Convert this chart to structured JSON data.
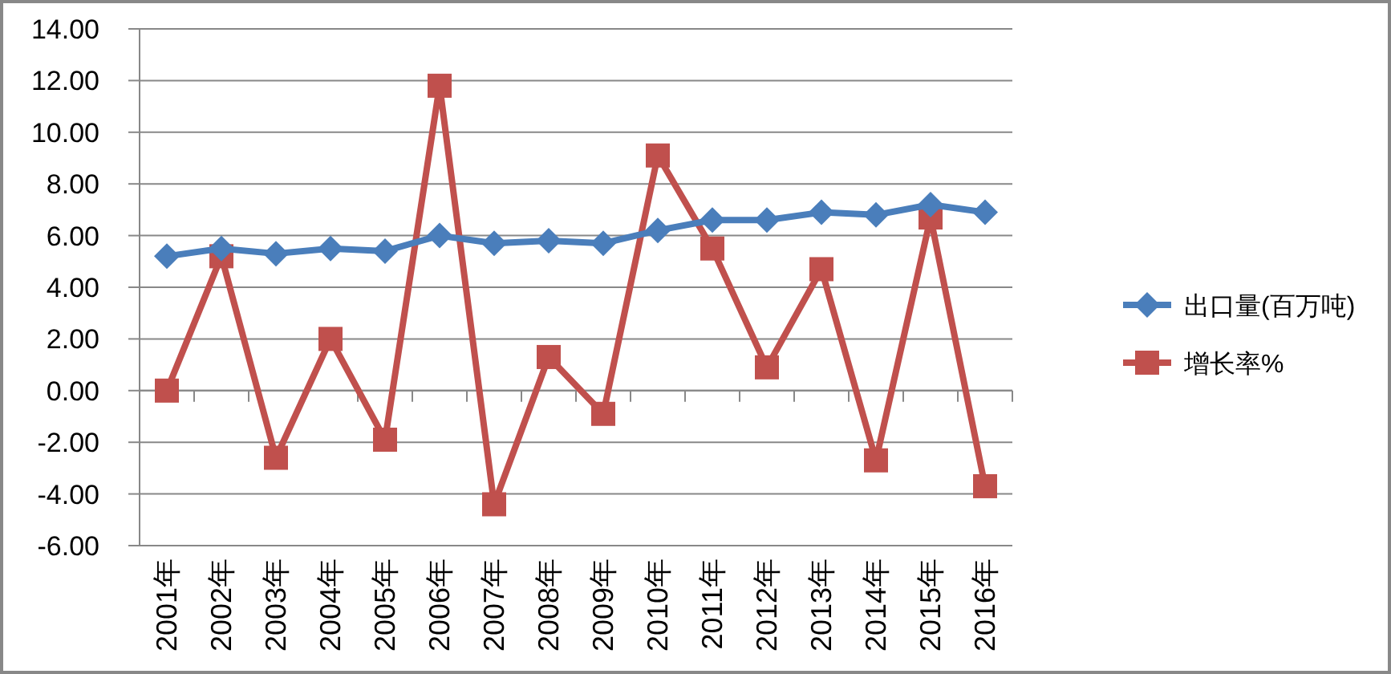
{
  "chart_data": {
    "type": "line",
    "categories": [
      "2001年",
      "2002年",
      "2003年",
      "2004年",
      "2005年",
      "2006年",
      "2007年",
      "2008年",
      "2009年",
      "2010年",
      "2011年",
      "2012年",
      "2013年",
      "2014年",
      "2015年",
      "2016年"
    ],
    "series": [
      {
        "name": "出口量(百万吨)",
        "color": "#4a7ebb",
        "marker": "diamond",
        "values": [
          5.2,
          5.5,
          5.3,
          5.5,
          5.4,
          6.0,
          5.7,
          5.8,
          5.7,
          6.2,
          6.6,
          6.6,
          6.9,
          6.8,
          7.2,
          6.9
        ]
      },
      {
        "name": "增长率%",
        "color": "#c0504d",
        "marker": "square",
        "values": [
          0.0,
          5.2,
          -2.6,
          2.0,
          -1.9,
          11.8,
          -4.4,
          1.3,
          -0.9,
          9.1,
          5.5,
          0.9,
          4.7,
          -2.7,
          6.7,
          -3.7
        ]
      }
    ],
    "ylim": [
      -6,
      14
    ],
    "yticks": [
      {
        "value": -6,
        "label": "-6.00"
      },
      {
        "value": -4,
        "label": "-4.00"
      },
      {
        "value": -2,
        "label": "-2.00"
      },
      {
        "value": 0,
        "label": "0.00"
      },
      {
        "value": 2,
        "label": "2.00"
      },
      {
        "value": 4,
        "label": "4.00"
      },
      {
        "value": 6,
        "label": "6.00"
      },
      {
        "value": 8,
        "label": "8.00"
      },
      {
        "value": 10,
        "label": "10.00"
      },
      {
        "value": 12,
        "label": "12.00"
      },
      {
        "value": 14,
        "label": "14.00"
      }
    ],
    "grid": "y",
    "legend": "right",
    "line_style": "solid"
  }
}
